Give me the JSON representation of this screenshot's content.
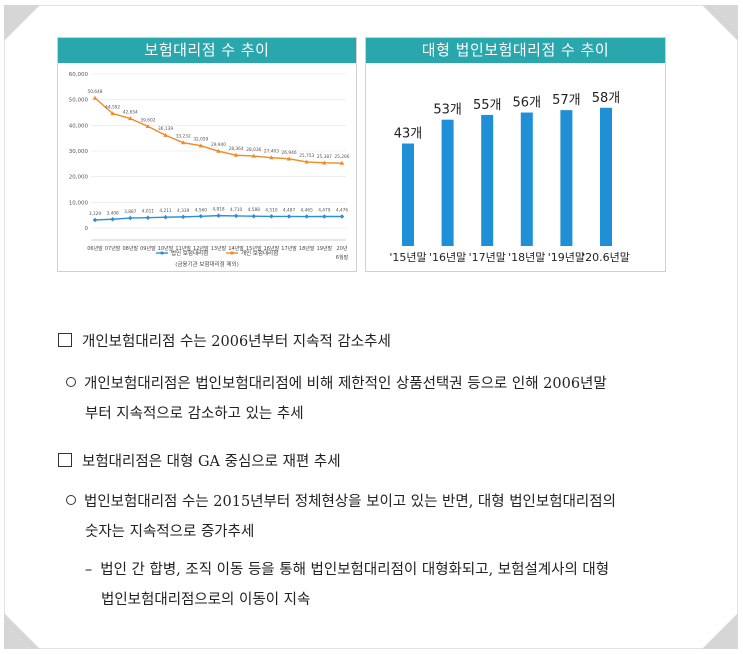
{
  "left_chart": {
    "title": "보험대리점 수 추이",
    "note": "(금융기관 보험대리점 제외)",
    "chart_data": {
      "type": "line",
      "ylim": [
        0,
        60000
      ],
      "y_ticks": [
        "60,000",
        "50,000",
        "40,000",
        "30,000",
        "20,000",
        "10,000",
        "0"
      ],
      "categories": [
        "06년말",
        "07년말",
        "08년말",
        "09년말",
        "10년말",
        "11년말",
        "12년말",
        "13년말",
        "14년말",
        "15년말",
        "16년말",
        "17년말",
        "18년말",
        "19년말",
        "20년"
      ],
      "extra_x_label": "6월말",
      "series": [
        {
          "name": "법인 보험대리점",
          "color": "#2b8fd6",
          "labels": [
            "3,129",
            "3,408",
            "3,887",
            "4,011",
            "4,211",
            "4,339",
            "4,560",
            "4,818",
            "4,710",
            "4,588",
            "4,510",
            "4,487",
            "4,465",
            "4,479",
            "4,476"
          ],
          "values": [
            3129,
            3408,
            3887,
            4011,
            4211,
            4339,
            4560,
            4818,
            4710,
            4588,
            4510,
            4487,
            4465,
            4479,
            4476
          ]
        },
        {
          "name": "개인 보험대리점",
          "color": "#f08a24",
          "labels": [
            "50,648",
            "44,592",
            "42,654",
            "39,602",
            "36,139",
            "33,232",
            "32,059",
            "29,940",
            "28,364",
            "28,036",
            "27,403",
            "26,946",
            "25,753",
            "25,387",
            "25,266"
          ],
          "values": [
            50648,
            44592,
            42654,
            39602,
            36139,
            33232,
            32059,
            29940,
            28364,
            28036,
            27403,
            26946,
            25753,
            25387,
            25266
          ]
        }
      ]
    }
  },
  "right_chart": {
    "title": "대형 법인보험대리점 수 추이",
    "chart_data": {
      "type": "bar",
      "categories": [
        "'15년말",
        "'16년말",
        "'17년말",
        "'18년말",
        "'19년말",
        "'20.6년말"
      ],
      "values": [
        43,
        53,
        55,
        56,
        57,
        58
      ],
      "value_labels": [
        "43개",
        "53개",
        "55개",
        "56개",
        "57개",
        "58개"
      ],
      "color": "#1f8fd6"
    }
  },
  "doc": {
    "h1": "개인보험대리점 수는 2006년부터 지속적 감소추세",
    "p1_l1": "개인보험대리점은 법인보험대리점에 비해 제한적인 상품선택권 등으로 인해 2006년말",
    "p1_l2": "부터 지속적으로 감소하고 있는 추세",
    "h2": "보험대리점은 대형 GA 중심으로 재편 추세",
    "p2_l1": "법인보험대리점 수는 2015년부터 정체현상을 보이고 있는 반면, 대형 법인보험대리점의",
    "p2_l2": "숫자는 지속적으로 증가추세",
    "p3_l1": "법인 간 합병, 조직 이동 등을 통해 법인보험대리점이 대형화되고, 보험설계사의 대형",
    "p3_l2": "법인보험대리점으로의 이동이 지속",
    "dash": "–"
  }
}
